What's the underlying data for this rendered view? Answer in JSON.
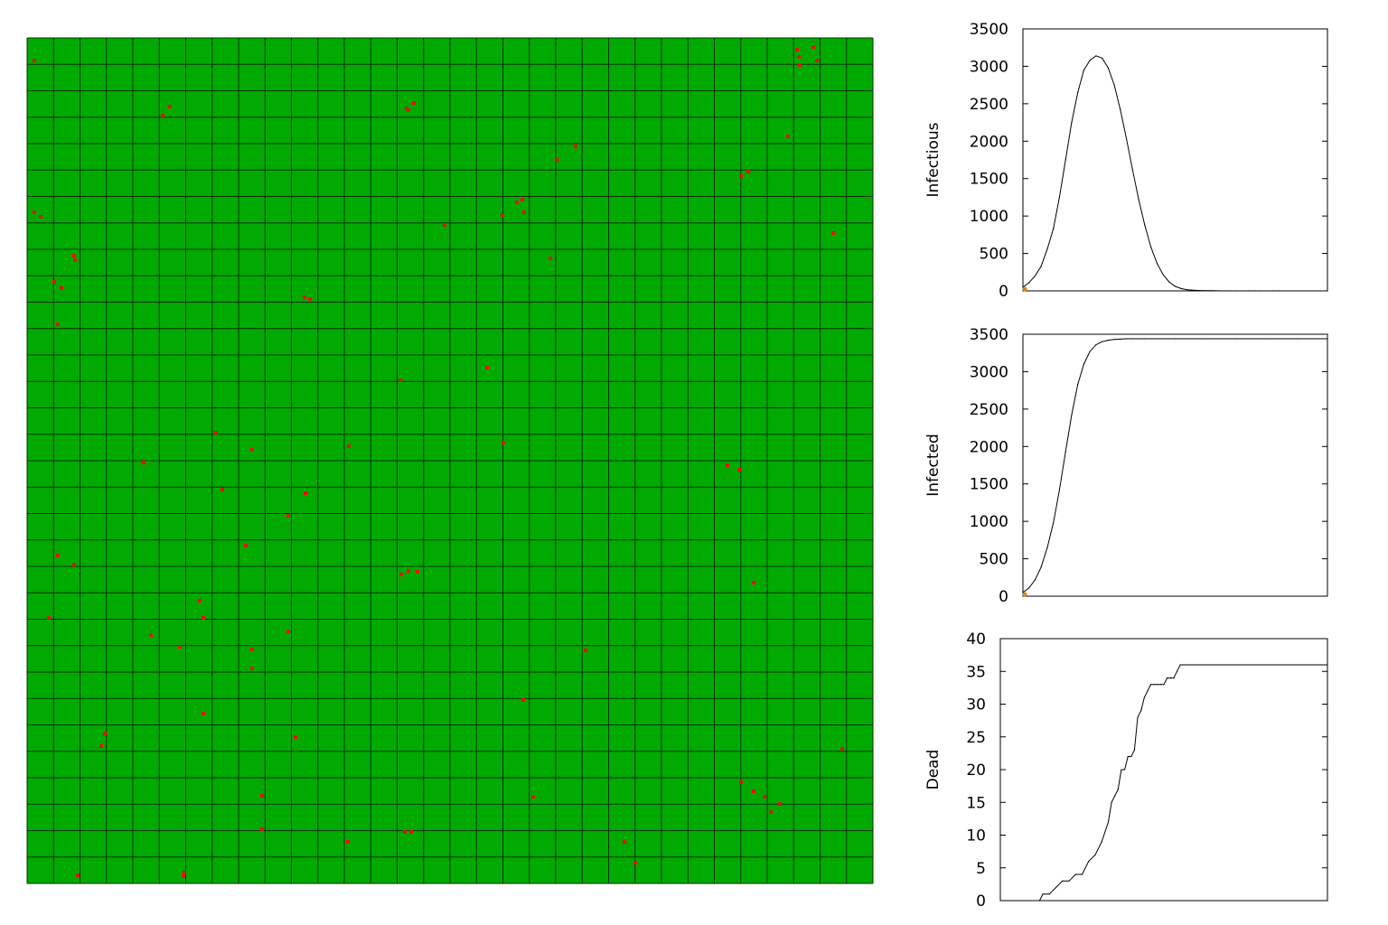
{
  "colors": {
    "grid_background": "#00aa00",
    "grid_lines": "#003300",
    "infected_dot": "#e81010",
    "plot_line": "#000000",
    "plot_frame": "#000000",
    "marker": "#e08020"
  },
  "grid": {
    "rows": 32,
    "cols": 32,
    "description_kind": "simulation-grid"
  },
  "chart_data": [
    {
      "type": "line",
      "ylabel": "Infectious",
      "xlabel": "",
      "title": "",
      "grid": false,
      "xlim": [
        0,
        100
      ],
      "ylim": [
        0,
        3500
      ],
      "yticks": [
        "0",
        "500",
        "1000",
        "1500",
        "2000",
        "2500",
        "3000",
        "3500"
      ],
      "ytick_values": [
        0,
        500,
        1000,
        1500,
        2000,
        2500,
        3000,
        3500
      ],
      "x": [
        0,
        2,
        4,
        6,
        8,
        10,
        12,
        14,
        16,
        18,
        20,
        22,
        24,
        26,
        28,
        30,
        32,
        34,
        36,
        38,
        40,
        42,
        44,
        46,
        48,
        50,
        52,
        54,
        56,
        58,
        60,
        62,
        64,
        66,
        68,
        70,
        72,
        74,
        76,
        78,
        80,
        82,
        84,
        100
      ],
      "values": [
        50,
        110,
        200,
        330,
        560,
        830,
        1250,
        1750,
        2250,
        2650,
        2950,
        3080,
        3140,
        3110,
        2980,
        2750,
        2420,
        2030,
        1620,
        1220,
        880,
        590,
        370,
        220,
        120,
        60,
        30,
        15,
        8,
        5,
        3,
        2,
        1,
        0,
        0,
        0,
        0,
        0,
        0,
        0,
        0,
        0,
        0,
        0
      ]
    },
    {
      "type": "line",
      "ylabel": "Infected",
      "xlabel": "",
      "title": "",
      "grid": false,
      "xlim": [
        0,
        100
      ],
      "ylim": [
        0,
        3500
      ],
      "yticks": [
        "0",
        "500",
        "1000",
        "1500",
        "2000",
        "2500",
        "3000",
        "3500"
      ],
      "ytick_values": [
        0,
        500,
        1000,
        1500,
        2000,
        2500,
        3000,
        3500
      ],
      "x": [
        0,
        2,
        4,
        6,
        8,
        10,
        12,
        14,
        16,
        18,
        20,
        22,
        24,
        26,
        28,
        30,
        32,
        34,
        36,
        38,
        40,
        50,
        60,
        70,
        80,
        90,
        100
      ],
      "values": [
        50,
        110,
        220,
        390,
        650,
        980,
        1420,
        1930,
        2420,
        2830,
        3100,
        3270,
        3360,
        3400,
        3420,
        3430,
        3435,
        3440,
        3440,
        3440,
        3440,
        3440,
        3440,
        3440,
        3440,
        3440,
        3440
      ]
    },
    {
      "type": "line",
      "ylabel": "Dead",
      "xlabel": "",
      "title": "",
      "grid": false,
      "xlim": [
        0,
        100
      ],
      "ylim": [
        0,
        40
      ],
      "yticks": [
        "0",
        "5",
        "10",
        "15",
        "20",
        "25",
        "30",
        "35",
        "40"
      ],
      "ytick_values": [
        0,
        5,
        10,
        15,
        20,
        25,
        30,
        35,
        40
      ],
      "x": [
        0,
        12,
        13,
        15,
        17,
        19,
        21,
        23,
        25,
        27,
        29,
        31,
        33,
        34,
        35,
        36,
        37,
        38,
        39,
        40,
        41,
        42,
        43,
        44,
        45,
        46,
        47,
        48,
        49,
        50,
        51,
        52,
        53,
        54,
        55,
        56,
        58,
        60,
        62,
        64,
        66,
        68,
        70,
        72,
        100
      ],
      "values": [
        0,
        0,
        1,
        1,
        2,
        3,
        3,
        4,
        4,
        6,
        7,
        9,
        12,
        15,
        16,
        17,
        20,
        20,
        22,
        22,
        23,
        28,
        29,
        31,
        32,
        33,
        33,
        33,
        33,
        33,
        34,
        34,
        34,
        35,
        36,
        36,
        36,
        36,
        36,
        36,
        36,
        36,
        36,
        36,
        36
      ]
    }
  ]
}
